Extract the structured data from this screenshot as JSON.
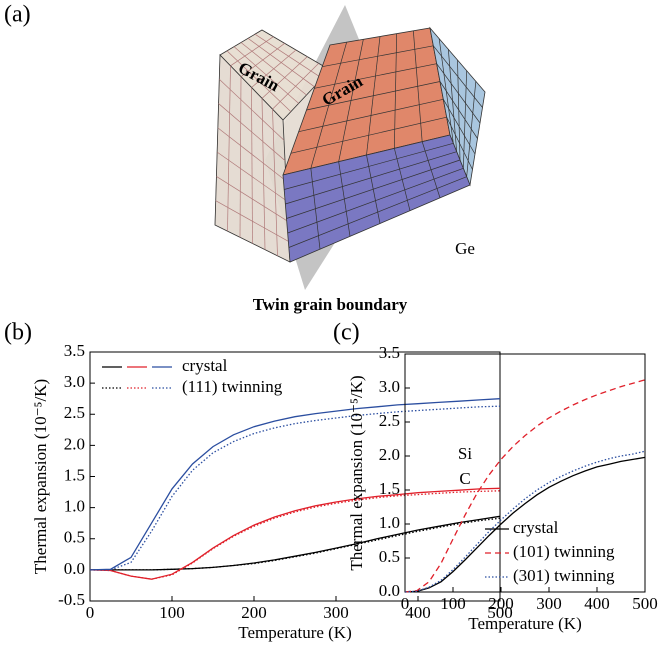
{
  "figure": {
    "panels": [
      "(a)",
      "(b)",
      "(c)"
    ]
  },
  "diagram": {
    "grains": [
      "Grain",
      "Grain"
    ],
    "boundary": "Twin grain boundary"
  },
  "chart_data": [
    {
      "type": "line",
      "x_label": "Temperature (K)",
      "y_label": "Thermal expansion (10⁻⁵/K)",
      "x": [
        0,
        25,
        50,
        75,
        100,
        125,
        150,
        175,
        200,
        225,
        250,
        275,
        300,
        325,
        350,
        375,
        400,
        425,
        450,
        475,
        500
      ],
      "xlim": [
        0,
        500
      ],
      "xticks": [
        0,
        100,
        200,
        300,
        400,
        500
      ],
      "ylim": [
        -0.5,
        3.5
      ],
      "yticks": [
        -0.5,
        {
          "value": 0,
          "label": "0.0"
        },
        0.5,
        {
          "value": 1,
          "label": "1.0"
        },
        1.5,
        {
          "value": 2,
          "label": "2.0"
        },
        2.5,
        {
          "value": 3,
          "label": "3.0"
        },
        3.5
      ],
      "legend": [
        {
          "label": "crystal",
          "dash": "solid"
        },
        {
          "label": "(111) twinning",
          "dash": "dotted"
        }
      ],
      "legend_position": "upper left",
      "materials": [
        {
          "name": "C",
          "color": "#000000",
          "series": [
            [
              0,
              0,
              0,
              0,
              0.01,
              0.02,
              0.04,
              0.07,
              0.11,
              0.16,
              0.22,
              0.28,
              0.35,
              0.42,
              0.5,
              0.57,
              0.64,
              0.7,
              0.76,
              0.81,
              0.86
            ],
            [
              0,
              0,
              0,
              0,
              0.01,
              0.02,
              0.04,
              0.07,
              0.1,
              0.15,
              0.21,
              0.27,
              0.34,
              0.41,
              0.48,
              0.55,
              0.62,
              0.68,
              0.74,
              0.79,
              0.83
            ]
          ]
        },
        {
          "name": "Si",
          "color": "#e0202a",
          "series": [
            [
              0,
              -0.01,
              -0.1,
              -0.15,
              -0.07,
              0.12,
              0.35,
              0.55,
              0.72,
              0.85,
              0.95,
              1.03,
              1.09,
              1.14,
              1.18,
              1.21,
              1.24,
              1.26,
              1.28,
              1.3,
              1.31
            ],
            [
              0,
              -0.01,
              -0.1,
              -0.15,
              -0.08,
              0.11,
              0.34,
              0.54,
              0.7,
              0.83,
              0.93,
              1.01,
              1.07,
              1.12,
              1.16,
              1.19,
              1.21,
              1.23,
              1.25,
              1.26,
              1.27
            ]
          ]
        },
        {
          "name": "Ge",
          "color": "#2b4ea0",
          "series": [
            [
              0,
              0.01,
              0.2,
              0.75,
              1.3,
              1.7,
              1.98,
              2.17,
              2.3,
              2.39,
              2.46,
              2.51,
              2.55,
              2.59,
              2.62,
              2.65,
              2.67,
              2.69,
              2.71,
              2.73,
              2.75
            ],
            [
              0,
              0,
              0.12,
              0.62,
              1.18,
              1.6,
              1.88,
              2.06,
              2.19,
              2.28,
              2.35,
              2.4,
              2.44,
              2.48,
              2.51,
              2.54,
              2.56,
              2.58,
              2.6,
              2.62,
              2.63
            ]
          ]
        }
      ]
    },
    {
      "type": "line",
      "x_label": "Temperature (K)",
      "y_label": "Thermal expansion (10⁻⁵/K)",
      "x": [
        0,
        25,
        50,
        75,
        100,
        125,
        150,
        175,
        200,
        225,
        250,
        275,
        300,
        325,
        350,
        375,
        400,
        425,
        450,
        475,
        500
      ],
      "xlim": [
        0,
        500
      ],
      "xticks": [
        0,
        100,
        200,
        300,
        400,
        500
      ],
      "ylim": [
        0,
        3.5
      ],
      "yticks": [
        {
          "value": 0,
          "label": "0.0"
        },
        0.5,
        {
          "value": 1,
          "label": "1.0"
        },
        1.5,
        {
          "value": 2,
          "label": "2.0"
        },
        2.5,
        {
          "value": 3,
          "label": "3.0"
        },
        3.5
      ],
      "legend_position": "lower right",
      "series": [
        {
          "name": "crystal",
          "color": "#000000",
          "dash": "solid",
          "values": [
            0,
            0.01,
            0.06,
            0.15,
            0.3,
            0.47,
            0.65,
            0.83,
            1.0,
            1.16,
            1.3,
            1.43,
            1.54,
            1.63,
            1.71,
            1.78,
            1.84,
            1.88,
            1.92,
            1.95,
            1.98
          ]
        },
        {
          "name": "(101) twinning",
          "color": "#e0202a",
          "dash": "dashed",
          "values": [
            0,
            0.02,
            0.15,
            0.42,
            0.78,
            1.13,
            1.45,
            1.72,
            1.95,
            2.14,
            2.3,
            2.44,
            2.56,
            2.66,
            2.75,
            2.83,
            2.9,
            2.96,
            3.02,
            3.07,
            3.12
          ]
        },
        {
          "name": "(301) twinning",
          "color": "#2b4ea0",
          "dash": "dotted",
          "values": [
            0,
            0.01,
            0.07,
            0.17,
            0.33,
            0.51,
            0.7,
            0.89,
            1.06,
            1.22,
            1.37,
            1.5,
            1.61,
            1.7,
            1.78,
            1.85,
            1.91,
            1.96,
            2.0,
            2.03,
            2.07
          ]
        }
      ]
    }
  ]
}
